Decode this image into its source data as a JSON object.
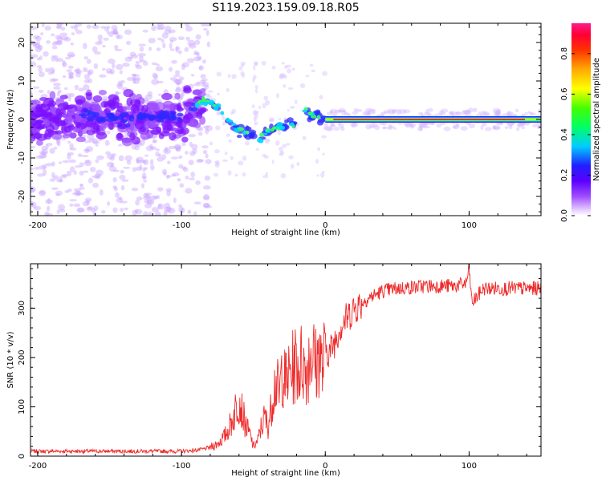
{
  "page": {
    "title": "S119.2023.159.09.18.R05"
  },
  "chart_data": [
    {
      "type": "heatmap",
      "name": "spectrogram",
      "xlabel": "Height of straight line (km)",
      "ylabel": "Frequency (Hz)",
      "xlim": [
        -205,
        150
      ],
      "ylim": [
        -25,
        25
      ],
      "xticks": [
        -200,
        -100,
        0,
        100
      ],
      "xtick_labels": [
        "-200",
        "-100",
        "0",
        "100"
      ],
      "yticks": [
        -20,
        -10,
        0,
        10,
        20
      ],
      "ytick_labels": [
        "-20",
        "-10",
        "0",
        "10",
        "20"
      ],
      "grid": false,
      "colorbar": {
        "label": "Normalized spectral amplitude",
        "range": [
          0,
          0.95
        ],
        "ticks": [
          0.0,
          0.2,
          0.4,
          0.6,
          0.8
        ],
        "tick_labels": [
          "0.0",
          "0.2",
          "0.4",
          "0.6",
          "0.8"
        ],
        "colormap": [
          "#ffffff",
          "#e6ccff",
          "#8a00ff",
          "#2020ff",
          "#00ccff",
          "#00ff66",
          "#66ff00",
          "#ffff00",
          "#ff6600",
          "#ff0000",
          "#ff1a8c"
        ]
      },
      "ridge": {
        "description_points_x": [
          -200,
          -180,
          -160,
          -140,
          -120,
          -100,
          -90,
          -80,
          -70,
          -60,
          -50,
          -45,
          -40,
          -35,
          -30,
          -25,
          -20,
          -15,
          -12,
          -10,
          -5,
          0,
          20,
          50,
          100,
          150
        ],
        "description_points_y": [
          0,
          0.5,
          1,
          0,
          1,
          1,
          4,
          5,
          1,
          -3,
          -4,
          -5,
          -3,
          -2,
          -2,
          -1,
          -1,
          3,
          2,
          1,
          1,
          0,
          0,
          0,
          0,
          0
        ]
      }
    },
    {
      "type": "line",
      "name": "snr",
      "xlabel": "Height of straight line (km)",
      "ylabel": "SNR (10 * v/v)",
      "xlim": [
        -205,
        150
      ],
      "ylim": [
        0,
        390
      ],
      "xticks": [
        -200,
        -100,
        0,
        100
      ],
      "xtick_labels": [
        "-200",
        "-100",
        "0",
        "100"
      ],
      "yticks": [
        0,
        100,
        200,
        300
      ],
      "ytick_labels": [
        "0",
        "100",
        "200",
        "300"
      ],
      "grid": false,
      "color": "#ee2a2a",
      "series": [
        {
          "x": [
            -205,
            -190,
            -170,
            -150,
            -130,
            -110,
            -100,
            -90,
            -85,
            -80,
            -75,
            -70,
            -65,
            -62,
            -60,
            -57,
            -55,
            -52,
            -50,
            -47,
            -45,
            -42,
            -40,
            -38,
            -36,
            -34,
            -32,
            -30,
            -28,
            -26,
            -24,
            -22,
            -20,
            -18,
            -16,
            -14,
            -12,
            -10,
            -8,
            -6,
            -4,
            -2,
            0,
            3,
            6,
            10,
            15,
            20,
            25,
            30,
            40,
            50,
            60,
            70,
            80,
            90,
            98,
            100,
            102,
            110,
            120,
            130,
            140,
            150
          ],
          "y": [
            10,
            10,
            10,
            10,
            10,
            10,
            10,
            12,
            14,
            18,
            25,
            40,
            70,
            100,
            120,
            80,
            60,
            40,
            20,
            30,
            55,
            80,
            60,
            90,
            140,
            150,
            120,
            180,
            150,
            160,
            170,
            180,
            190,
            175,
            200,
            170,
            190,
            220,
            200,
            180,
            220,
            170,
            220,
            210,
            230,
            260,
            280,
            300,
            310,
            320,
            335,
            340,
            342,
            345,
            345,
            345,
            350,
            380,
            310,
            340,
            340,
            340,
            340,
            340
          ]
        }
      ]
    }
  ]
}
